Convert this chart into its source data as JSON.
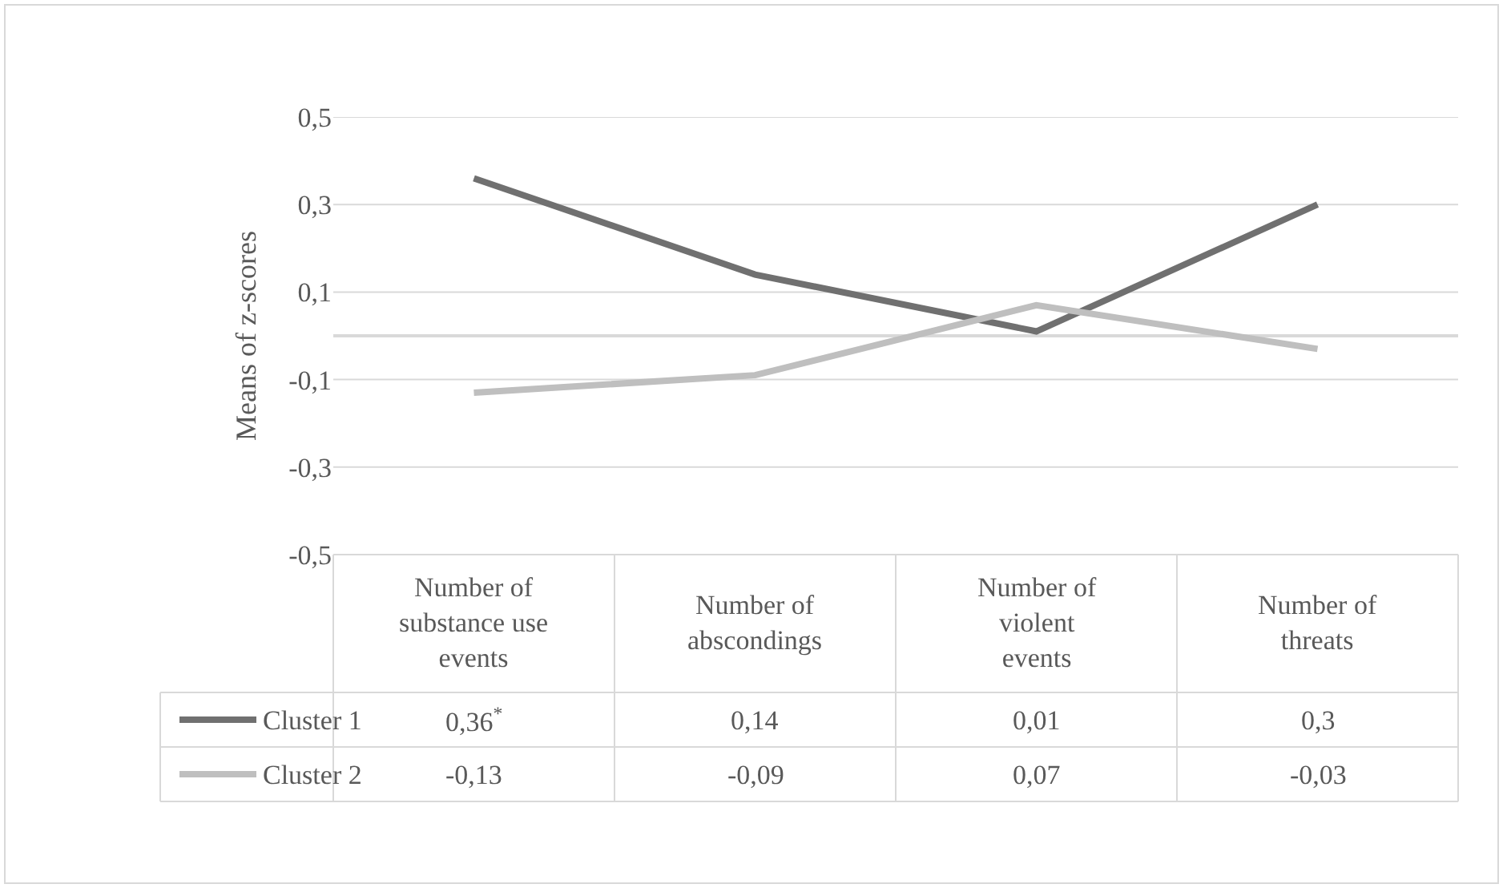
{
  "chart_data": {
    "type": "line",
    "ylabel": "Means of z-scores",
    "categories": [
      "Number of substance use events",
      "Number of abscondings",
      "Number of violent events",
      "Number of threats"
    ],
    "series": [
      {
        "name": "Cluster 1",
        "color": "#707070",
        "values": [
          0.36,
          0.14,
          0.01,
          0.3
        ],
        "value_labels": [
          "0,36$^{*}$",
          "0,14",
          "0,01",
          "0,3"
        ]
      },
      {
        "name": "Cluster 2",
        "color": "#bfbfbf",
        "values": [
          -0.13,
          -0.09,
          0.07,
          -0.03
        ],
        "value_labels": [
          "-0,13",
          "-0,09",
          "0,07",
          "-0,03"
        ]
      }
    ],
    "ylim": [
      -0.5,
      0.5
    ],
    "yticks": [
      {
        "value": 0.5,
        "label": "0,5"
      },
      {
        "value": 0.3,
        "label": "0,3"
      },
      {
        "value": 0.1,
        "label": "0,1"
      },
      {
        "value": -0.1,
        "label": "-0,1"
      },
      {
        "value": -0.3,
        "label": "-0,3"
      },
      {
        "value": -0.5,
        "label": "-0,5"
      }
    ],
    "grid": "y",
    "marker": "none",
    "line_style": "solid",
    "legend": "bottom"
  }
}
